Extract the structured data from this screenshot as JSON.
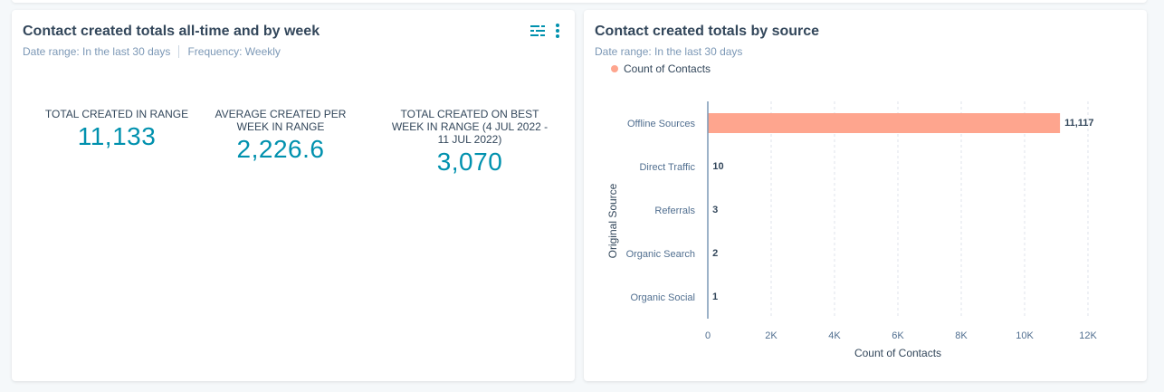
{
  "card1": {
    "title": "Contact created totals all-time and by week",
    "date_range": "Date range: In the last 30 days",
    "frequency": "Frequency: Weekly",
    "kpis": [
      {
        "label": "TOTAL CREATED IN RANGE",
        "value": "11,133"
      },
      {
        "label": "AVERAGE CREATED PER WEEK IN RANGE",
        "value": "2,226.6"
      },
      {
        "label": "TOTAL CREATED ON BEST WEEK IN RANGE (4 JUL 2022 - 11 JUL 2022)",
        "value": "3,070"
      }
    ],
    "icons": [
      "filter-sliders-icon",
      "more-vertical-icon"
    ],
    "accent": "#0091ae"
  },
  "card2": {
    "title": "Contact created totals by source",
    "date_range": "Date range: In the last 30 days"
  },
  "chart_data": {
    "type": "bar",
    "orientation": "horizontal",
    "categories": [
      "Offline Sources",
      "Direct Traffic",
      "Referrals",
      "Organic Search",
      "Organic Social"
    ],
    "series": [
      {
        "name": "Count of Contacts",
        "values": [
          11117,
          10,
          3,
          2,
          1
        ],
        "color": "#fea58e"
      }
    ],
    "data_labels": [
      "11,117",
      "10",
      "3",
      "2",
      "1"
    ],
    "xlabel": "Count of Contacts",
    "ylabel": "Original Source",
    "xlim": [
      0,
      12000
    ],
    "xticks": [
      "0",
      "2K",
      "4K",
      "6K",
      "8K",
      "10K",
      "12K"
    ],
    "grid": true,
    "legend": "top-left"
  }
}
